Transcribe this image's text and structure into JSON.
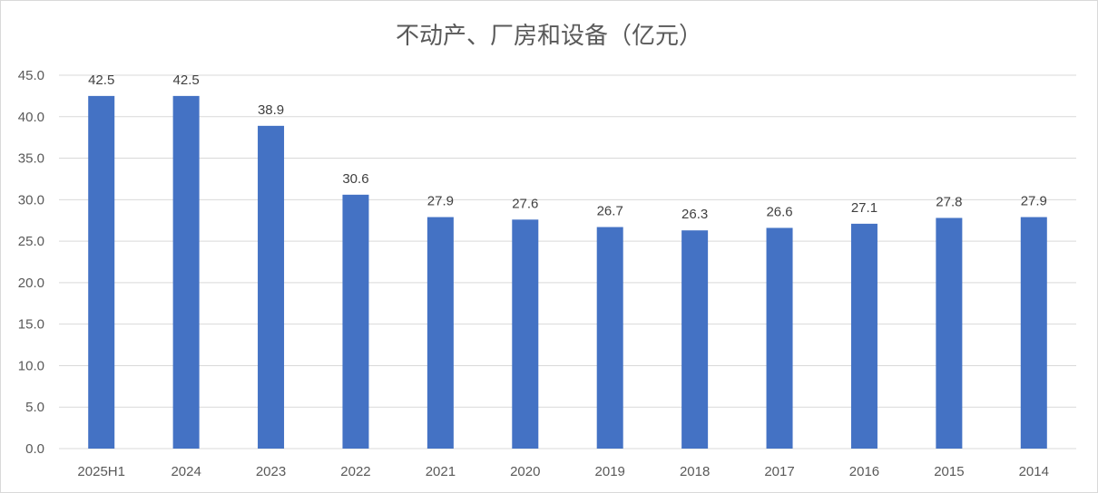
{
  "chart_data": {
    "type": "bar",
    "title": "不动产、厂房和设备（亿元）",
    "categories": [
      "2025H1",
      "2024",
      "2023",
      "2022",
      "2021",
      "2020",
      "2019",
      "2018",
      "2017",
      "2016",
      "2015",
      "2014"
    ],
    "values": [
      42.5,
      42.5,
      38.9,
      30.6,
      27.9,
      27.6,
      26.7,
      26.3,
      26.6,
      27.1,
      27.8,
      27.9
    ],
    "value_labels": [
      "42.5",
      "42.5",
      "38.9",
      "30.6",
      "27.9",
      "27.6",
      "26.7",
      "26.3",
      "26.6",
      "27.1",
      "27.8",
      "27.9"
    ],
    "y_ticks": [
      "0.0",
      "5.0",
      "10.0",
      "15.0",
      "20.0",
      "25.0",
      "30.0",
      "35.0",
      "40.0",
      "45.0"
    ],
    "ylim": [
      0,
      45
    ],
    "xlabel": "",
    "ylabel": "",
    "grid": true,
    "legend": "none",
    "bar_color": "#4472C4",
    "grid_color": "#d9d9d9"
  }
}
